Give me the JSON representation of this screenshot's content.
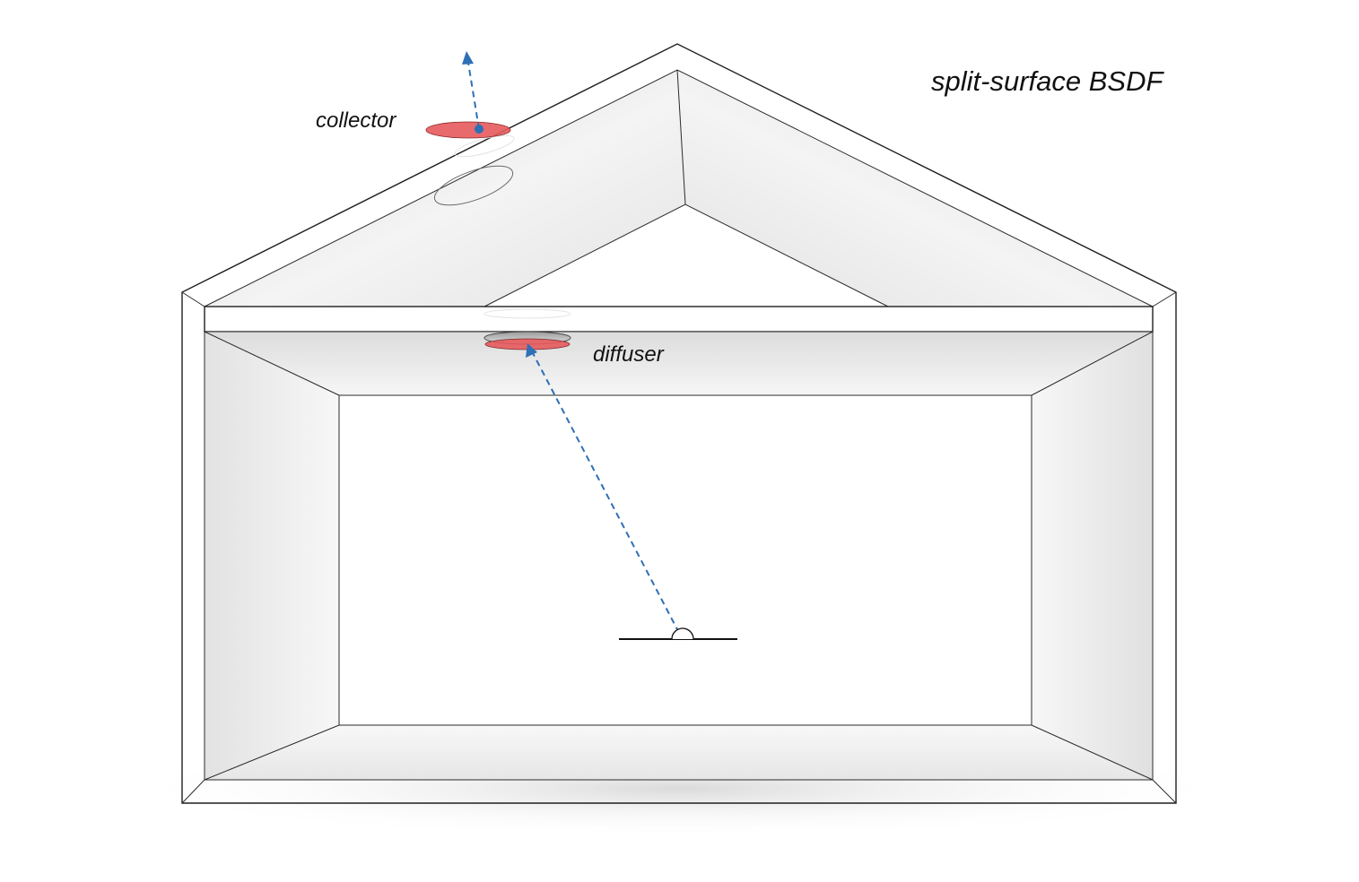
{
  "diagram": {
    "title": "split-surface BSDF",
    "labels": {
      "collector": "collector",
      "diffuser": "diffuser"
    },
    "colors": {
      "accent_red": "#e55a5c",
      "ray_blue": "#2e6fb5",
      "line": "#1f1f1f"
    },
    "icons": {
      "sensor": "sensor-hemisphere-icon",
      "arrow": "dashed-arrow-icon"
    }
  }
}
